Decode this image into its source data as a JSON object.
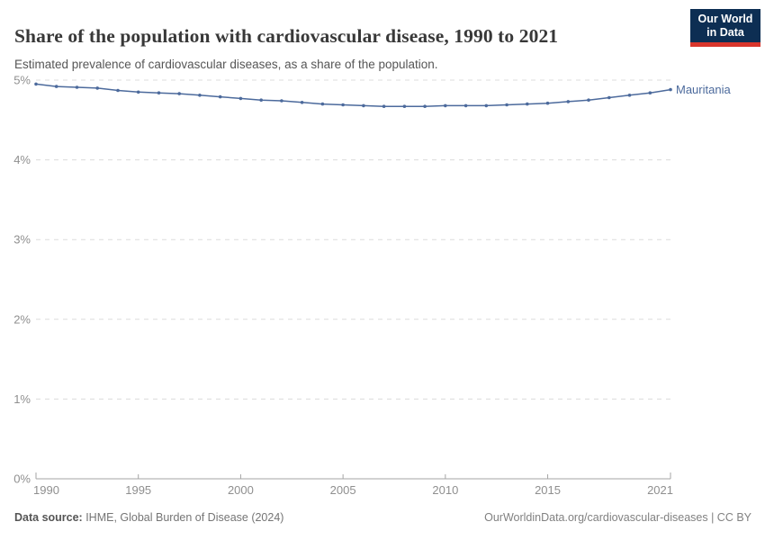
{
  "header": {
    "title": "Share of the population with cardiovascular disease, 1990 to 2021",
    "subtitle": "Estimated prevalence of cardiovascular diseases, as a share of the population.",
    "logo": {
      "line1": "Our World",
      "line2": "in Data",
      "bg_color": "#0d2e53",
      "accent_color": "#d8352b"
    }
  },
  "footer": {
    "source_label": "Data source:",
    "source_text": " IHME, Global Burden of Disease (2024)",
    "attribution": "OurWorldinData.org/cardiovascular-diseases | CC BY"
  },
  "chart_data": {
    "type": "line",
    "title": "Share of the population with cardiovascular disease, 1990 to 2021",
    "subtitle": "Estimated prevalence of cardiovascular diseases, as a share of the population.",
    "xlabel": "",
    "ylabel": "",
    "xlim": [
      1990,
      2021
    ],
    "ylim": [
      0,
      5
    ],
    "grid": "horizontal-dashed",
    "legend_position": "line-end-label",
    "x": [
      1990,
      1991,
      1992,
      1993,
      1994,
      1995,
      1996,
      1997,
      1998,
      1999,
      2000,
      2001,
      2002,
      2003,
      2004,
      2005,
      2006,
      2007,
      2008,
      2009,
      2010,
      2011,
      2012,
      2013,
      2014,
      2015,
      2016,
      2017,
      2018,
      2019,
      2020,
      2021
    ],
    "series": [
      {
        "name": "Mauritania",
        "color": "#4C6A9C",
        "values": [
          4.95,
          4.92,
          4.91,
          4.9,
          4.87,
          4.85,
          4.84,
          4.83,
          4.81,
          4.79,
          4.77,
          4.75,
          4.74,
          4.72,
          4.7,
          4.69,
          4.68,
          4.67,
          4.67,
          4.67,
          4.68,
          4.68,
          4.68,
          4.69,
          4.7,
          4.71,
          4.73,
          4.75,
          4.78,
          4.81,
          4.84,
          4.88
        ]
      }
    ],
    "yticks": [
      {
        "value": 0,
        "label": "0%"
      },
      {
        "value": 1,
        "label": "1%"
      },
      {
        "value": 2,
        "label": "2%"
      },
      {
        "value": 3,
        "label": "3%"
      },
      {
        "value": 4,
        "label": "4%"
      },
      {
        "value": 5,
        "label": "5%"
      }
    ],
    "xticks": [
      {
        "value": 1990,
        "label": "1990"
      },
      {
        "value": 1995,
        "label": "1995"
      },
      {
        "value": 2000,
        "label": "2000"
      },
      {
        "value": 2005,
        "label": "2005"
      },
      {
        "value": 2010,
        "label": "2010"
      },
      {
        "value": 2015,
        "label": "2015"
      },
      {
        "value": 2021,
        "label": "2021"
      }
    ],
    "colors": {
      "gridline": "#dcdcdc",
      "axis": "#a5a5a5",
      "tick_label": "#8f8f8f"
    }
  }
}
